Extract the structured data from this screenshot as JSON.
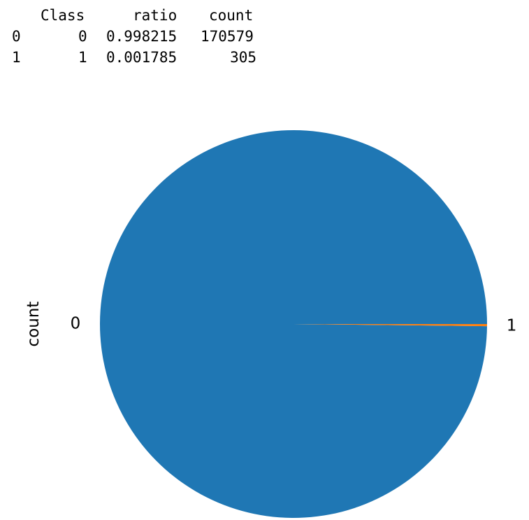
{
  "table": {
    "columns": [
      "Class",
      "ratio",
      "count"
    ],
    "rows": [
      {
        "index": "0",
        "Class": "0",
        "ratio": "0.998215",
        "count": "170579"
      },
      {
        "index": "1",
        "Class": "1",
        "ratio": "0.001785",
        "count": "305"
      }
    ]
  },
  "chart_data": {
    "type": "pie",
    "categories": [
      "0",
      "1"
    ],
    "values": [
      170579,
      305
    ],
    "ylabel": "count",
    "colors": [
      "#1f77b4",
      "#ff7f0e"
    ],
    "legend": "none",
    "grid": false
  }
}
